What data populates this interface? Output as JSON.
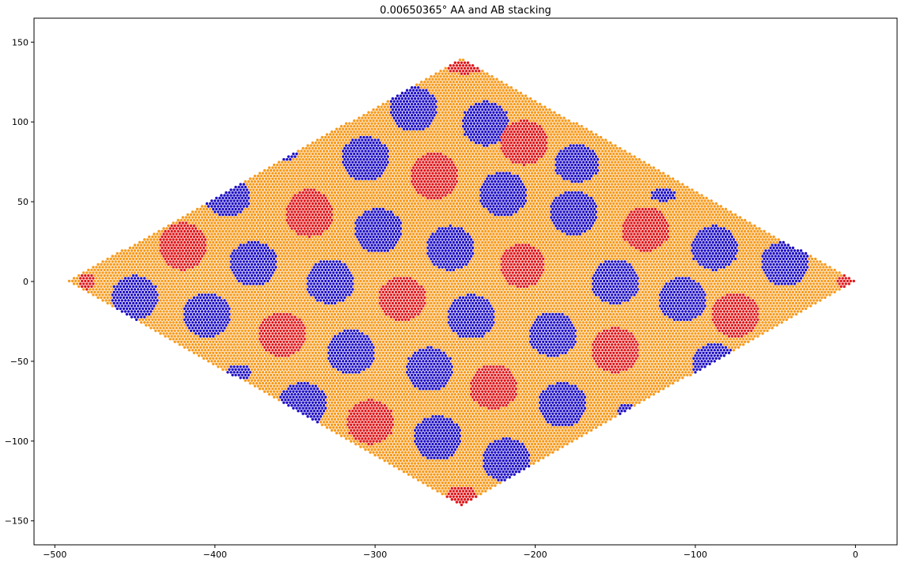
{
  "chart_data": {
    "type": "scatter",
    "title": "0.00650365° AA and AB stacking",
    "xlabel": "",
    "ylabel": "",
    "xlim": [
      -513,
      26
    ],
    "ylim": [
      -165,
      165
    ],
    "xticks": [
      -500,
      -400,
      -300,
      -200,
      -100,
      0
    ],
    "yticks": [
      -150,
      -100,
      -50,
      0,
      50,
      100,
      150
    ],
    "grid": false,
    "legend": "none",
    "region": {
      "shape": "rhombus",
      "vertices": [
        [
          -492,
          0
        ],
        [
          -246,
          140
        ],
        [
          0,
          0
        ],
        [
          -246,
          -140
        ]
      ]
    },
    "colors": {
      "background_atoms": "#f89a1c",
      "aa_regions": "#e0171a",
      "ab_regions": "#1d0dc4"
    },
    "series": [
      {
        "color": "#f89a1c",
        "role": "background-lattice",
        "description_points": "dense hexagonal lattice filling the rhombus"
      },
      {
        "color": "#e0171a",
        "role": "aa-regions",
        "centers": [
          [
            -244,
            134
          ],
          [
            -207,
            87
          ],
          [
            -263,
            66
          ],
          [
            -341,
            43
          ],
          [
            -420,
            22
          ],
          [
            -131,
            33
          ],
          [
            -208,
            10
          ],
          [
            -283,
            -11
          ],
          [
            -358,
            -33
          ],
          [
            -480,
            0
          ],
          [
            -6,
            0
          ],
          [
            -75,
            -21
          ],
          [
            -150,
            -43
          ],
          [
            -226,
            -66
          ],
          [
            -303,
            -88
          ],
          [
            -246,
            -134
          ]
        ],
        "radii": [
          [
            12,
            4
          ],
          [
            15,
            14
          ],
          [
            15,
            15
          ],
          [
            15,
            15
          ],
          [
            15,
            15
          ],
          [
            15,
            14
          ],
          [
            14,
            14
          ],
          [
            15,
            14
          ],
          [
            15,
            14
          ],
          [
            5,
            5
          ],
          [
            6,
            4
          ],
          [
            15,
            14
          ],
          [
            15,
            14
          ],
          [
            15,
            14
          ],
          [
            15,
            14
          ],
          [
            10,
            6
          ]
        ]
      },
      {
        "color": "#1d0dc4",
        "role": "ab-regions",
        "centers": [
          [
            -276,
            108
          ],
          [
            -231,
            99
          ],
          [
            -306,
            77
          ],
          [
            -174,
            74
          ],
          [
            -356,
            80
          ],
          [
            -220,
            55
          ],
          [
            -298,
            32
          ],
          [
            -376,
            11
          ],
          [
            -450,
            -10
          ],
          [
            -392,
            53
          ],
          [
            -176,
            43
          ],
          [
            -253,
            21
          ],
          [
            -328,
            0
          ],
          [
            -405,
            -21
          ],
          [
            -88,
            21
          ],
          [
            -44,
            11
          ],
          [
            -150,
            0
          ],
          [
            -108,
            -11
          ],
          [
            -189,
            -33
          ],
          [
            -266,
            -55
          ],
          [
            -345,
            -77
          ],
          [
            -120,
            54
          ],
          [
            -240,
            -22
          ],
          [
            -315,
            -44
          ],
          [
            -218,
            -112
          ],
          [
            -261,
            -98
          ],
          [
            -88,
            -51
          ],
          [
            -183,
            -77
          ],
          [
            -385,
            -57
          ],
          [
            -143,
            -80
          ]
        ],
        "radii": [
          [
            15,
            14
          ],
          [
            15,
            14
          ],
          [
            15,
            14
          ],
          [
            14,
            12
          ],
          [
            8,
            4
          ],
          [
            15,
            14
          ],
          [
            15,
            14
          ],
          [
            15,
            14
          ],
          [
            15,
            14
          ],
          [
            14,
            12
          ],
          [
            15,
            14
          ],
          [
            15,
            14
          ],
          [
            15,
            14
          ],
          [
            15,
            14
          ],
          [
            15,
            14
          ],
          [
            15,
            14
          ],
          [
            15,
            14
          ],
          [
            15,
            14
          ],
          [
            15,
            14
          ],
          [
            15,
            14
          ],
          [
            15,
            14
          ],
          [
            8,
            4
          ],
          [
            15,
            14
          ],
          [
            15,
            14
          ],
          [
            15,
            14
          ],
          [
            15,
            14
          ],
          [
            14,
            12
          ],
          [
            15,
            14
          ],
          [
            8,
            5
          ],
          [
            6,
            4
          ]
        ]
      }
    ]
  }
}
